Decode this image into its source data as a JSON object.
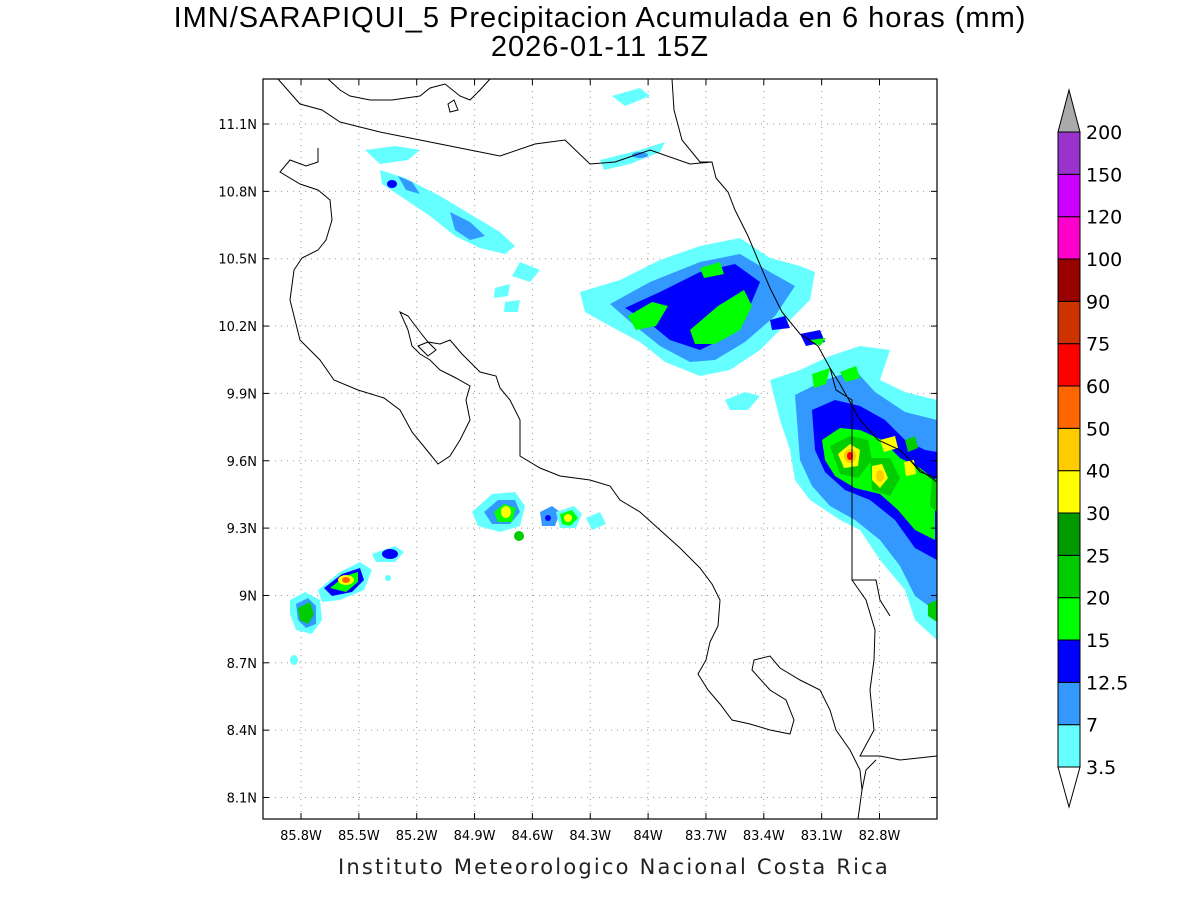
{
  "title_line1": "IMN/SARAPIQUI_5 Precipitacion Acumulada en 6 horas (mm)",
  "title_line2": "2026-01-11 15Z",
  "credit": "Instituto Meteorologico Nacional Costa Rica",
  "lat_labels": [
    "11.1N",
    "10.8N",
    "10.5N",
    "10.2N",
    "9.9N",
    "9.6N",
    "9.3N",
    "9N",
    "8.7N",
    "8.4N",
    "8.1N"
  ],
  "lon_labels": [
    "85.8W",
    "85.5W",
    "85.2W",
    "84.9W",
    "84.6W",
    "84.3W",
    "84W",
    "83.7W",
    "83.4W",
    "83.1W",
    "82.8W"
  ],
  "legend": {
    "labels": [
      "3.5",
      "7",
      "12.5",
      "15",
      "20",
      "25",
      "30",
      "40",
      "50",
      "60",
      "75",
      "90",
      "100",
      "120",
      "150",
      "200"
    ],
    "colors": [
      "#66ffff",
      "#3399ff",
      "#0000ff",
      "#00ff00",
      "#00cc00",
      "#009900",
      "#ffff00",
      "#ffcc00",
      "#ff6600",
      "#ff0000",
      "#cc3300",
      "#990000",
      "#ff00cc",
      "#cc00ff",
      "#9933cc",
      "#f2f2f2",
      "#aaaaaa"
    ]
  }
}
